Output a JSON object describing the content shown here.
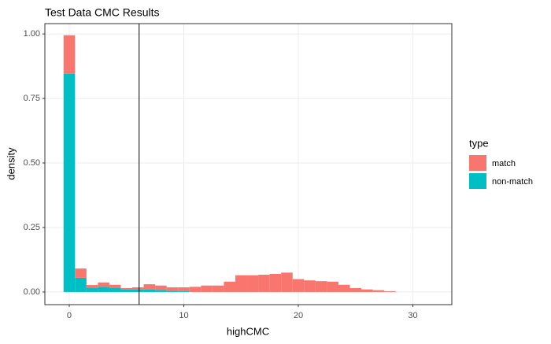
{
  "chart_data": {
    "type": "histogram",
    "title": "Test Data CMC Results",
    "x_label": "highCMC",
    "y_label": "density",
    "legend_title": "type",
    "stacked": true,
    "grid": true,
    "legend": "right",
    "bins": [
      -0.5,
      0.5,
      1.5,
      2.5,
      3.5,
      4.5,
      5.5,
      6.5,
      7.5,
      8.5,
      9.5,
      10.5,
      11.5,
      12.5,
      13.5,
      14.5,
      15.5,
      16.5,
      17.5,
      18.5,
      19.5,
      20.5,
      21.5,
      22.5,
      23.5,
      24.5,
      25.5,
      26.5,
      27.5,
      28.5
    ],
    "series": [
      {
        "name": "match",
        "color": "#f8766d",
        "values": [
          0.15,
          0.036,
          0.012,
          0.017,
          0.013,
          0.005,
          0.008,
          0.02,
          0.017,
          0.013,
          0.015,
          0.02,
          0.025,
          0.025,
          0.04,
          0.065,
          0.065,
          0.067,
          0.07,
          0.075,
          0.05,
          0.045,
          0.042,
          0.04,
          0.028,
          0.015,
          0.01,
          0.007,
          0.003
        ]
      },
      {
        "name": "non-match",
        "color": "#00bfc4",
        "values": [
          0.845,
          0.055,
          0.015,
          0.02,
          0.015,
          0.01,
          0.01,
          0.01,
          0.008,
          0.005,
          0.003,
          0,
          0,
          0,
          0,
          0,
          0,
          0,
          0,
          0,
          0,
          0,
          0,
          0,
          0,
          0,
          0,
          0,
          0
        ]
      }
    ],
    "vline": 6.1,
    "xlim": [
      -2.13,
      33.4
    ],
    "xticks": [
      0,
      10,
      20,
      30
    ],
    "ylim": [
      -0.049,
      1.04
    ],
    "yticks": [
      {
        "value": 0,
        "label": "0.00"
      },
      {
        "value": 0.25,
        "label": "0.25"
      },
      {
        "value": 0.5,
        "label": "0.50"
      },
      {
        "value": 0.75,
        "label": "0.75"
      },
      {
        "value": 1,
        "label": "1.00"
      }
    ]
  }
}
